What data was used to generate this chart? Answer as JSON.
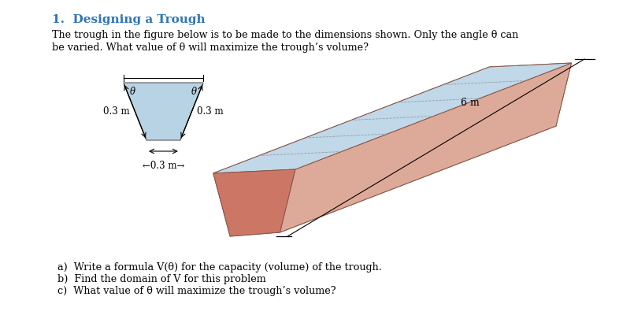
{
  "title": "1.  Designing a Trough",
  "title_color": "#2E75B6",
  "bg_color": "#ffffff",
  "body_line1": "The trough in the figure below is to be made to the dimensions shown. Only the angle θ can",
  "body_line2": "be varied. What value of θ will maximize the trough’s volume?",
  "questions": [
    "a)  Write a formula V(θ) for the capacity (volume) of the trough.",
    "b)  Find the domain of V for this problem",
    "c)  What value of θ will maximize the trough’s volume?"
  ],
  "label_left": "0.3 m",
  "label_right": "0.3 m",
  "label_bottom": "←0.3 m→",
  "label_length": "6 m",
  "theta": "θ",
  "salmon": "#CC7766",
  "salmon_dark": "#AA5544",
  "salmon_light": "#DDAA99",
  "blue_inner": "#C0D8E8",
  "blue_cs": "#B8D4E4",
  "edge_color": "#885544"
}
